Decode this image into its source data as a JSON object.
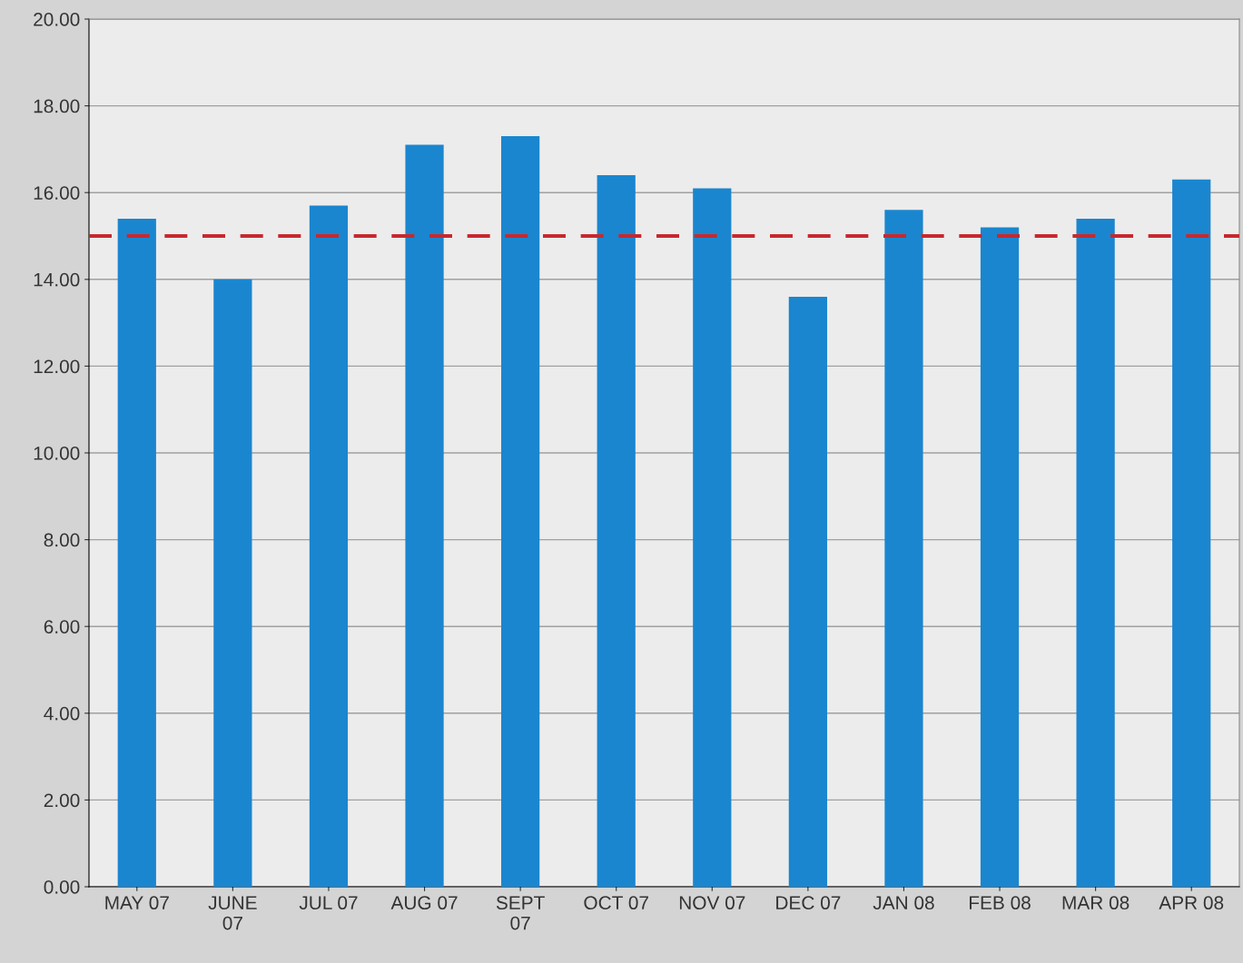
{
  "chart_data": {
    "type": "bar",
    "categories": [
      "MAY 07",
      "JUNE\n07",
      "JUL 07",
      "AUG 07",
      "SEPT\n07",
      "OCT 07",
      "NOV 07",
      "DEC 07",
      "JAN 08",
      "FEB 08",
      "MAR 08",
      "APR 08"
    ],
    "values": [
      15.4,
      14.0,
      15.7,
      17.1,
      17.3,
      16.4,
      16.1,
      13.6,
      15.6,
      15.2,
      15.4,
      16.3
    ],
    "color": "#1a86cf",
    "ylim": [
      0,
      20
    ],
    "yticks": [
      {
        "value": 0,
        "label": "0.00"
      },
      {
        "value": 2,
        "label": "2.00"
      },
      {
        "value": 4,
        "label": "4.00"
      },
      {
        "value": 6,
        "label": "6.00"
      },
      {
        "value": 8,
        "label": "8.00"
      },
      {
        "value": 10,
        "label": "10.00"
      },
      {
        "value": 12,
        "label": "12.00"
      },
      {
        "value": 14,
        "label": "14.00"
      },
      {
        "value": 16,
        "label": "16.00"
      },
      {
        "value": 18,
        "label": "18.00"
      },
      {
        "value": 20,
        "label": "20.00"
      }
    ],
    "ref_lines": [
      {
        "axis": "y",
        "value": 15,
        "label": null,
        "color": "#c8282d",
        "line_style": "dashed"
      }
    ],
    "grid": "y",
    "legend": false
  }
}
